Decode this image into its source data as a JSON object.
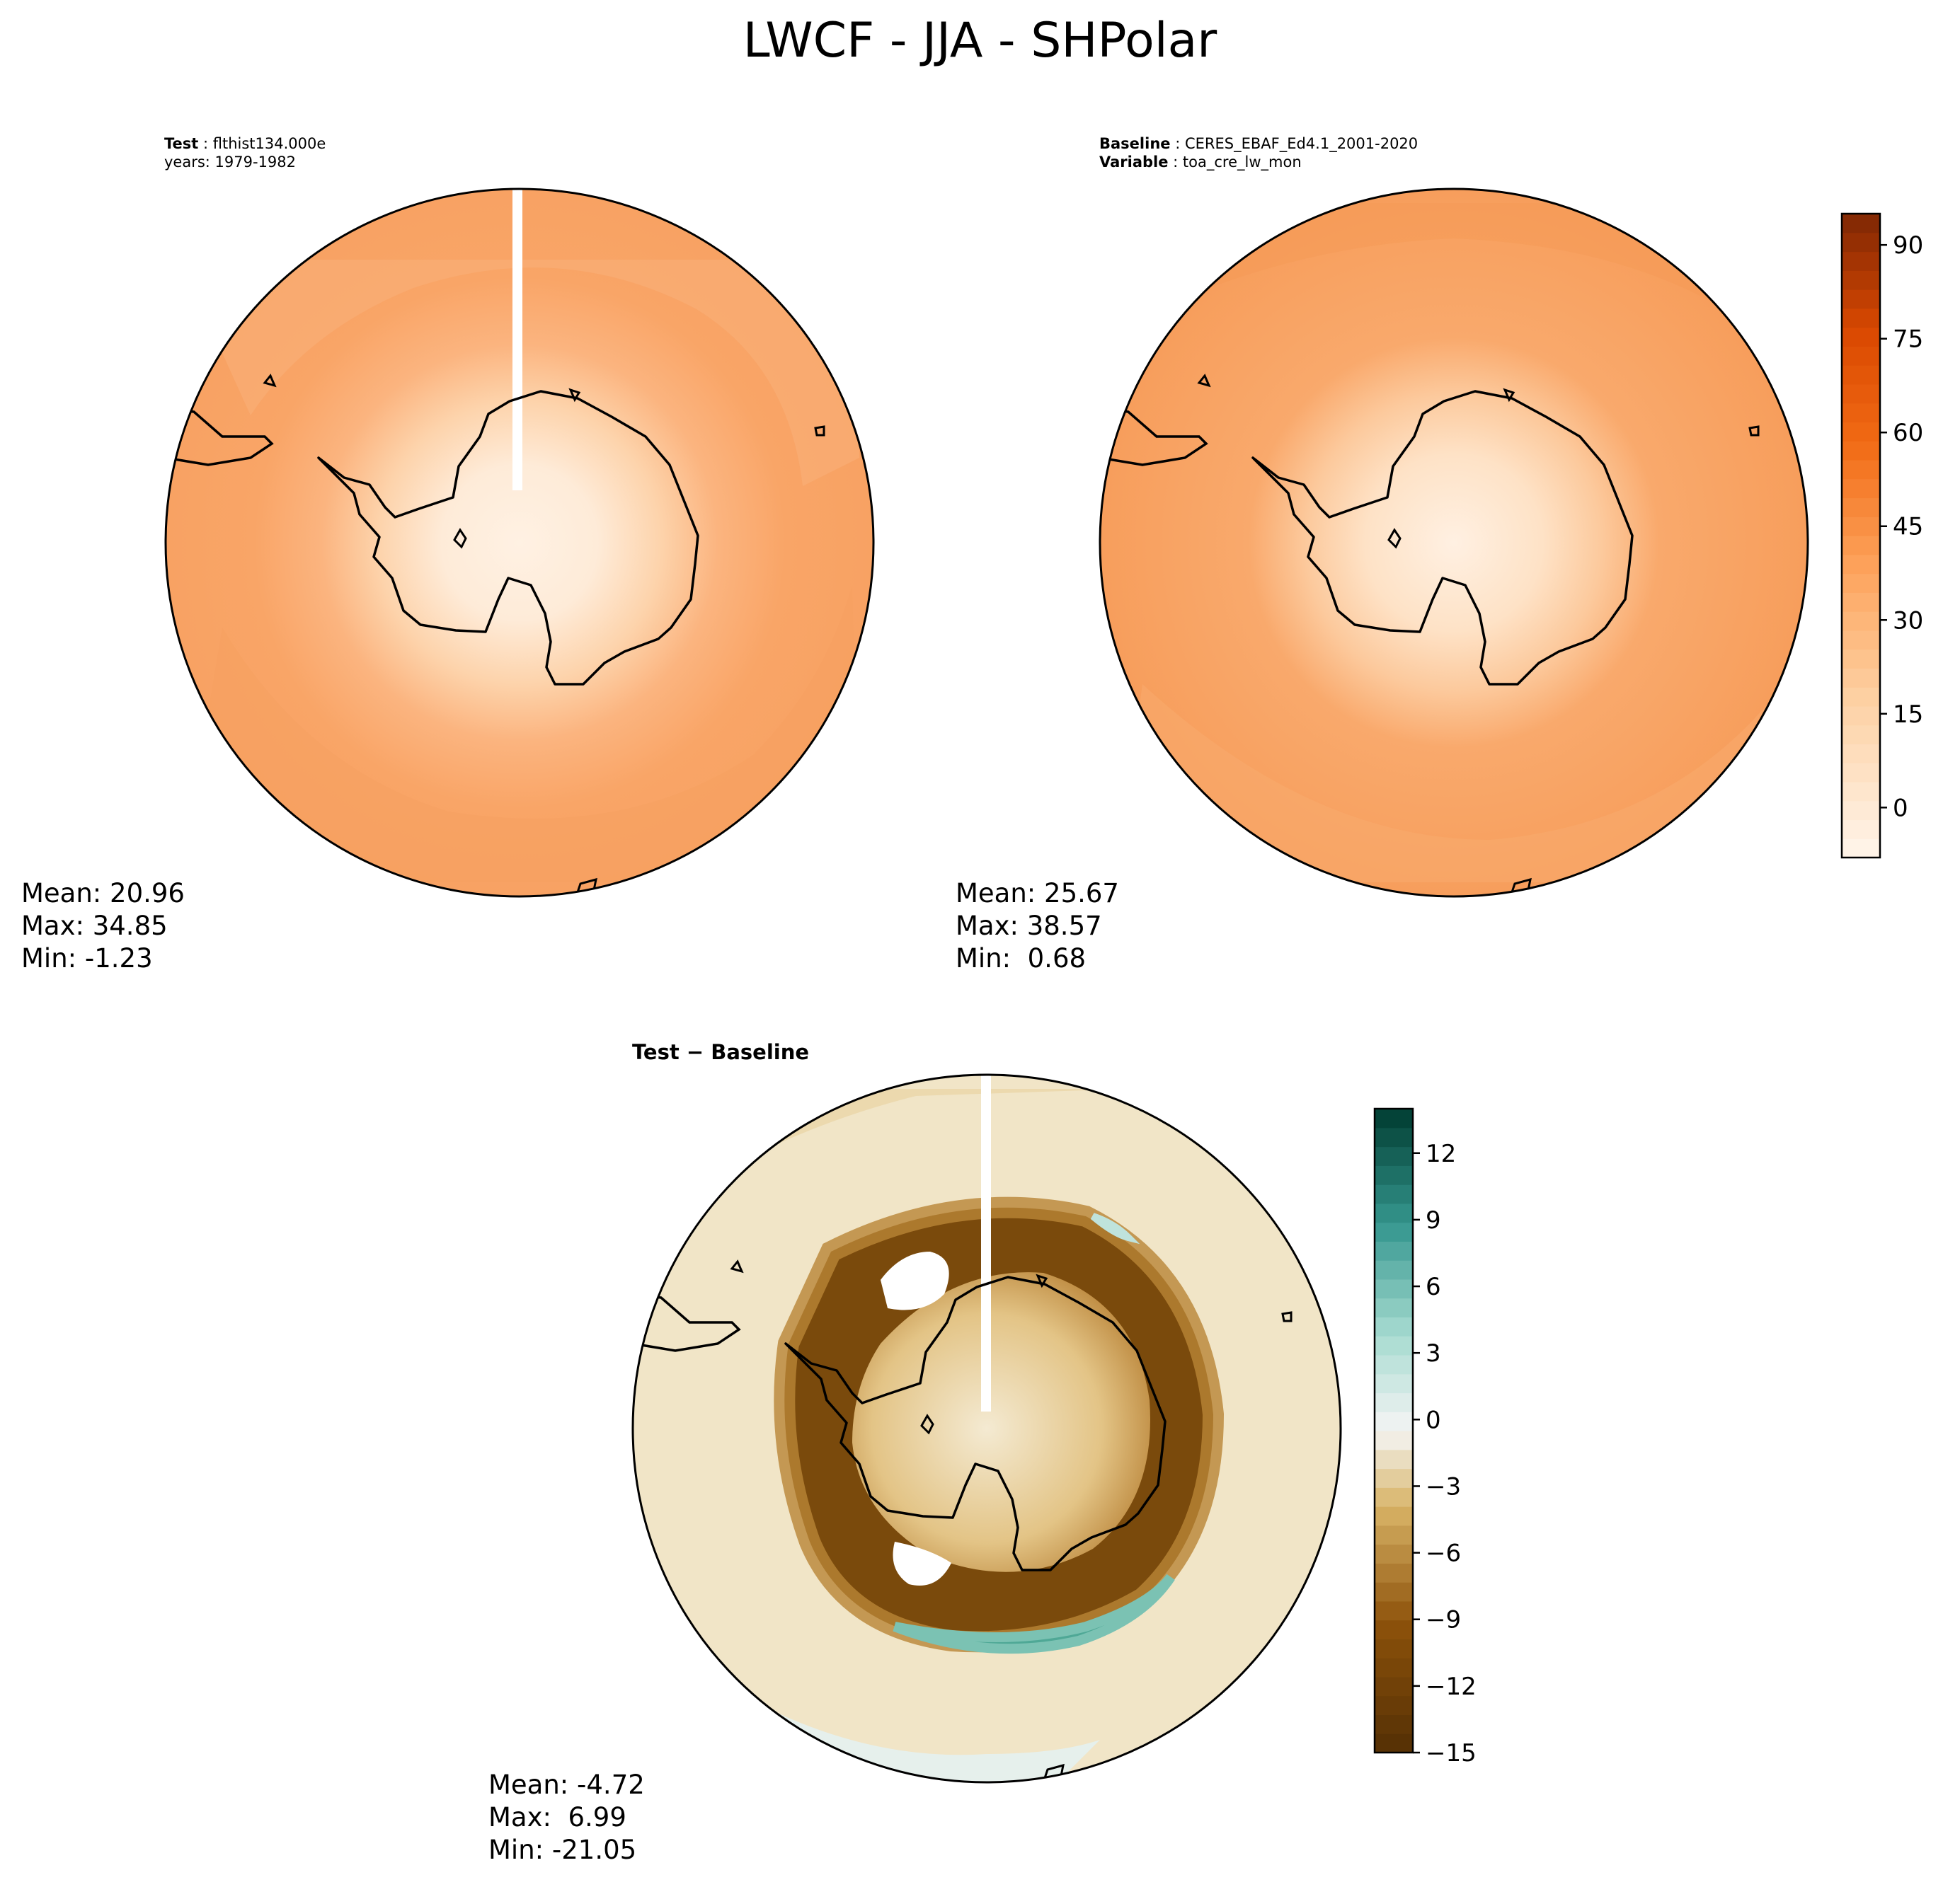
{
  "figure": {
    "title": "LWCF - JJA - SHPolar"
  },
  "panels": [
    {
      "id": "test",
      "title_lines": [
        {
          "key": "Test",
          "value": "flthist134.000e"
        },
        {
          "key": "",
          "value": "years: 1979-1982"
        }
      ],
      "stats": {
        "mean": "Mean: 20.96",
        "max": "Max: 34.85",
        "min": "Min: -1.23"
      }
    },
    {
      "id": "baseline",
      "title_lines": [
        {
          "key": "Baseline",
          "value": "CERES_EBAF_Ed4.1_2001-2020"
        },
        {
          "key": "Variable",
          "value": "toa_cre_lw_mon"
        }
      ],
      "stats": {
        "mean": "Mean: 25.67",
        "max": "Max: 38.57",
        "min": "Min:  0.68"
      }
    },
    {
      "id": "diff",
      "title": "Test − Baseline",
      "stats": {
        "mean": "Mean: -4.72",
        "max": "Max:  6.99",
        "min": "Min: -21.05"
      }
    }
  ],
  "chart_data": [
    {
      "type": "heatmap",
      "name": "Test",
      "projection": "south-polar-stereographic",
      "colormap": "Oranges",
      "colorbar": {
        "ticks": [
          0,
          15,
          30,
          45,
          60,
          75,
          90
        ],
        "ylim": [
          -8,
          95
        ]
      },
      "mean": 20.96,
      "max": 34.85,
      "min": -1.23
    },
    {
      "type": "heatmap",
      "name": "Baseline",
      "projection": "south-polar-stereographic",
      "colormap": "Oranges",
      "colorbar": {
        "ticks": [
          0,
          15,
          30,
          45,
          60,
          75,
          90
        ],
        "ylim": [
          -8,
          95
        ]
      },
      "mean": 25.67,
      "max": 38.57,
      "min": 0.68
    },
    {
      "type": "heatmap",
      "name": "Test − Baseline",
      "projection": "south-polar-stereographic",
      "colormap": "BrBG",
      "colorbar": {
        "ticks": [
          -15,
          -12,
          -9,
          -6,
          -3,
          0,
          3,
          6,
          9,
          12
        ],
        "tick_labels": [
          "−15",
          "−12",
          "−9",
          "−6",
          "−3",
          "0",
          "3",
          "6",
          "9",
          "12"
        ],
        "ylim": [
          -15,
          14
        ]
      },
      "mean": -4.72,
      "max": 6.99,
      "min": -21.05
    }
  ],
  "colors": {
    "oranges_low": "#fff5eb",
    "oranges_mid": "#f9a567",
    "oranges_high": "#7f2704",
    "brbg_low": "#543005",
    "brbg_mid": "#f5f5f5",
    "brbg_high": "#003c30"
  }
}
